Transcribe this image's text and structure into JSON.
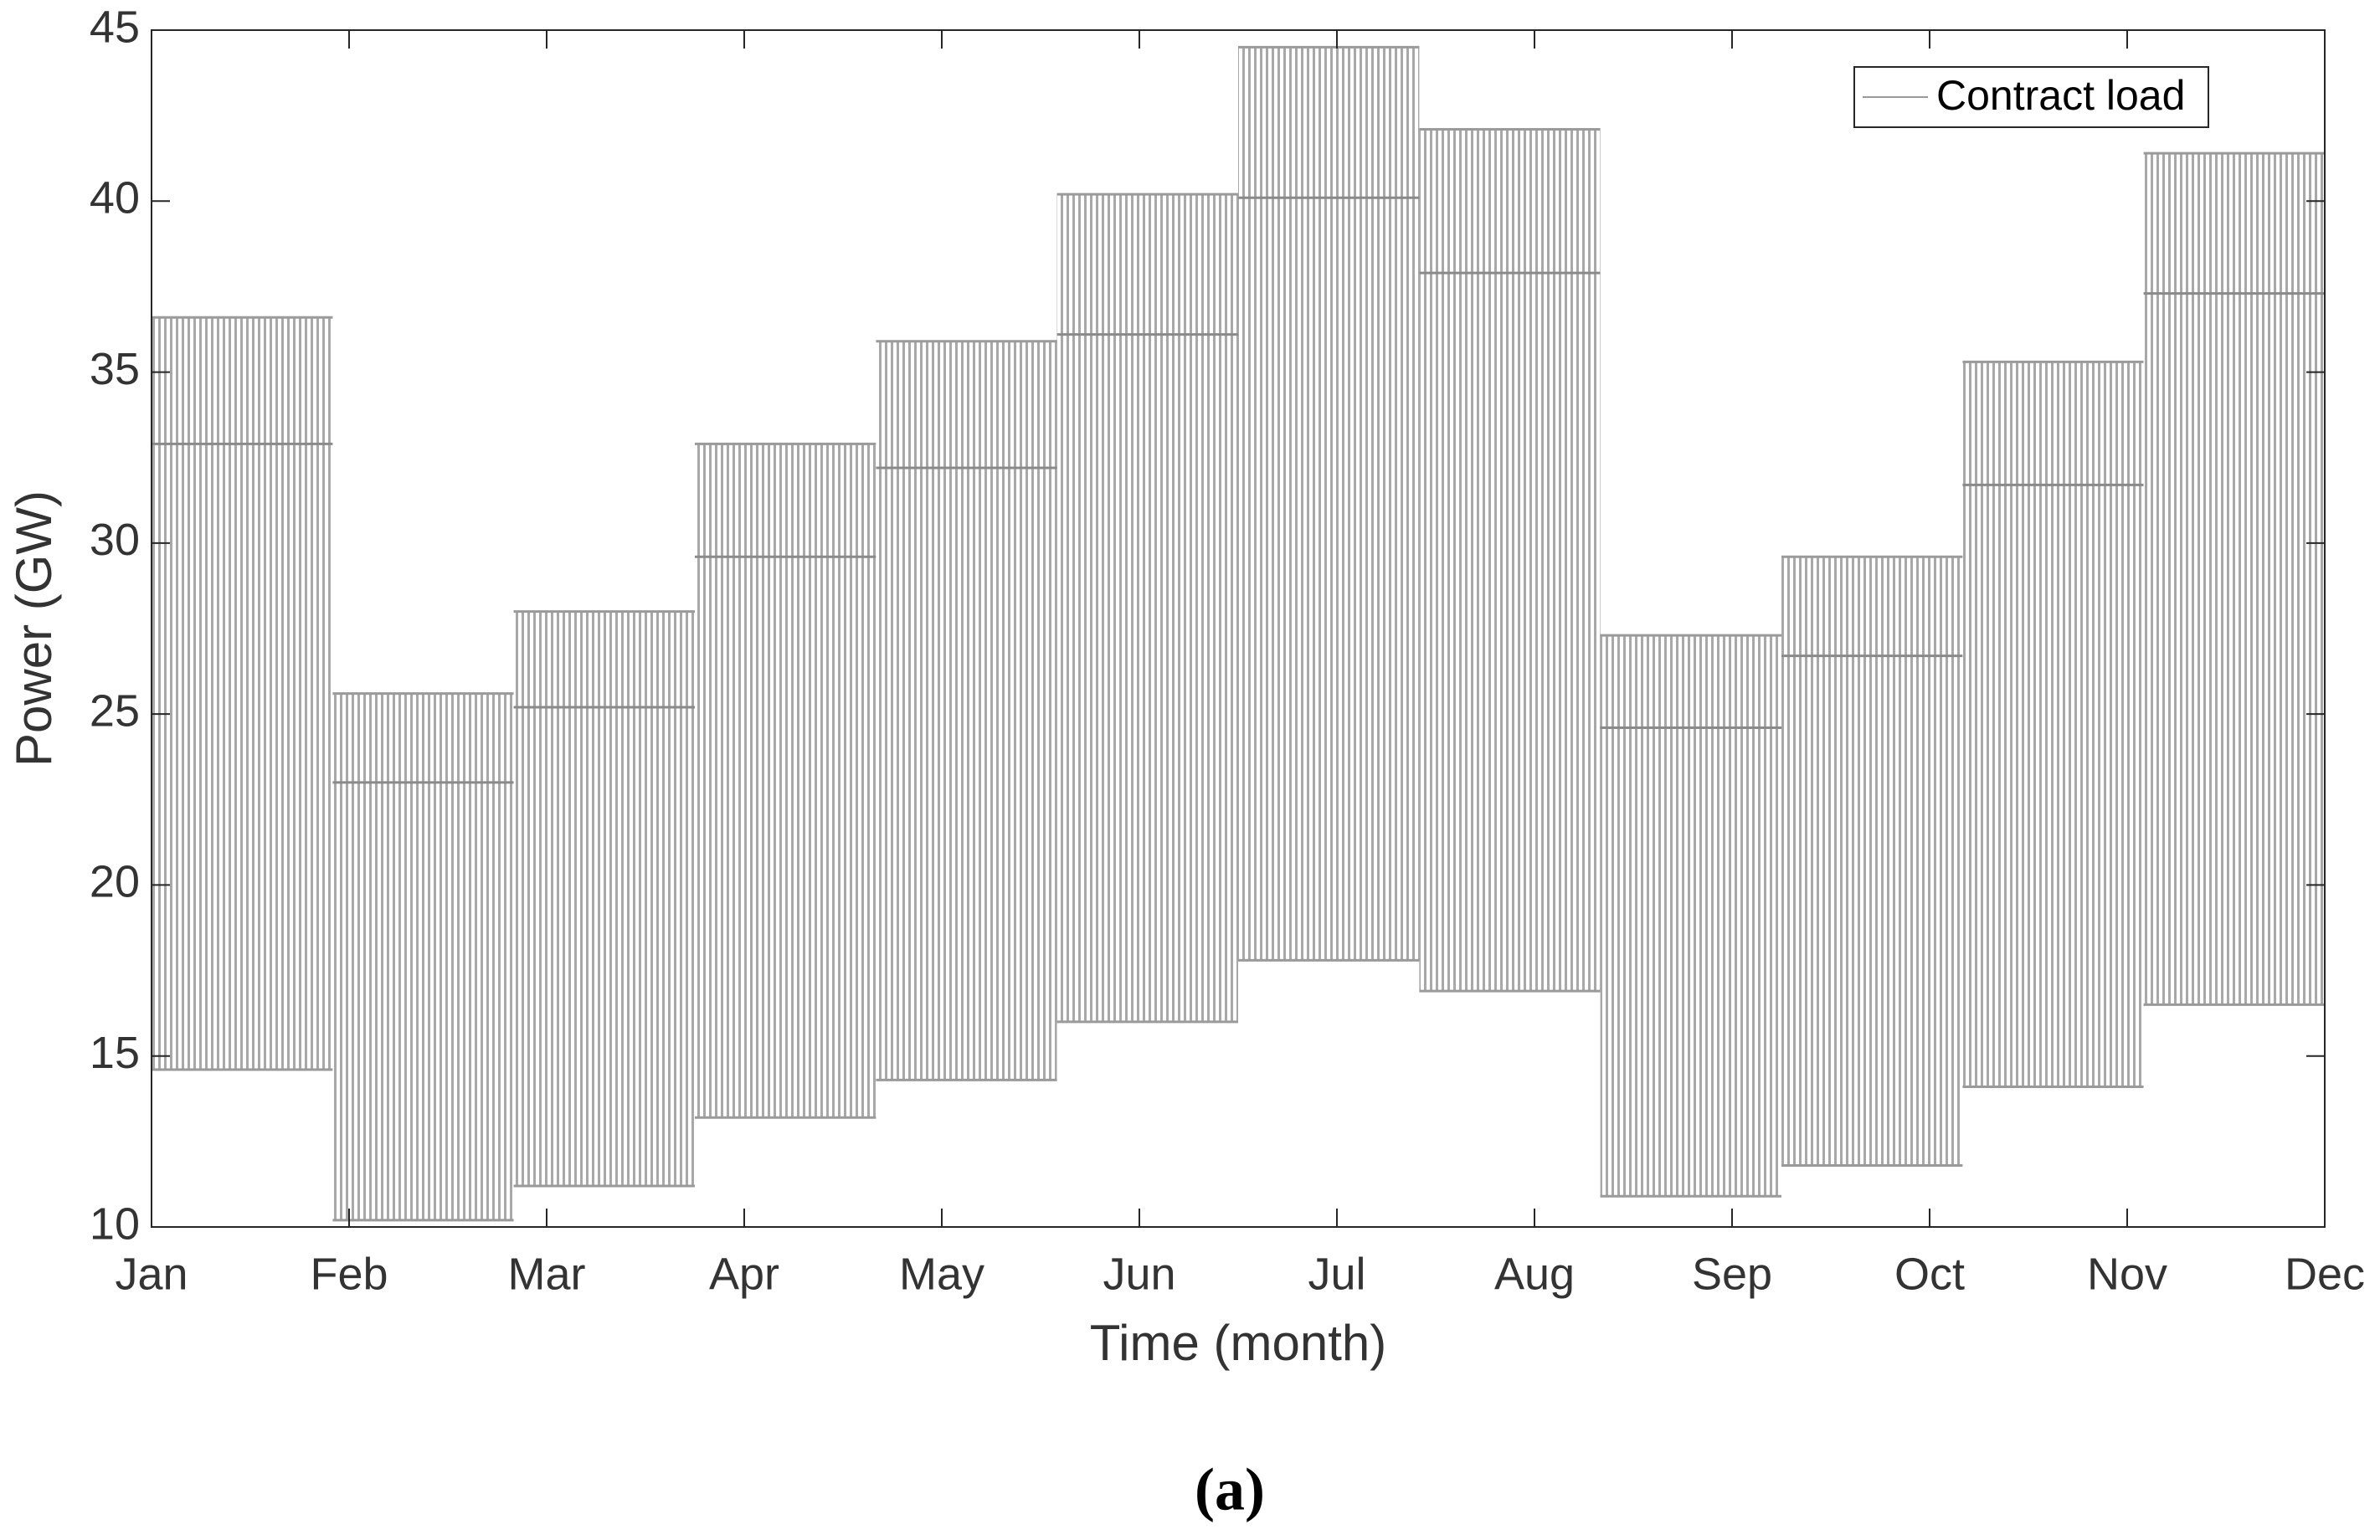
{
  "chart_data": {
    "type": "band-blocks",
    "xlabel": "Time (month)",
    "ylabel": "Power (GW)",
    "caption": "(a)",
    "legend_location": "upper right",
    "grid": false,
    "series": [
      {
        "name": "Contract load",
        "color": "#9a9a9a",
        "blocks": [
          {
            "start": 0,
            "end": 0.917,
            "low": 14.6,
            "mid": 32.9,
            "high": 36.6
          },
          {
            "start": 0.917,
            "end": 1.833,
            "low": 10.2,
            "mid": 23.0,
            "high": 25.6
          },
          {
            "start": 1.833,
            "end": 2.75,
            "low": 11.2,
            "mid": 25.2,
            "high": 28.0
          },
          {
            "start": 2.75,
            "end": 3.667,
            "low": 13.2,
            "mid": 29.6,
            "high": 32.9
          },
          {
            "start": 3.667,
            "end": 4.583,
            "low": 14.3,
            "mid": 32.2,
            "high": 35.9
          },
          {
            "start": 4.583,
            "end": 5.5,
            "low": 16.0,
            "mid": 36.1,
            "high": 40.2
          },
          {
            "start": 5.5,
            "end": 6.417,
            "low": 17.8,
            "mid": 40.1,
            "high": 44.5
          },
          {
            "start": 6.417,
            "end": 7.333,
            "low": 16.9,
            "mid": 37.9,
            "high": 42.1
          },
          {
            "start": 7.333,
            "end": 8.25,
            "low": 10.9,
            "mid": 24.6,
            "high": 27.3
          },
          {
            "start": 8.25,
            "end": 9.167,
            "low": 11.8,
            "mid": 26.7,
            "high": 29.6
          },
          {
            "start": 9.167,
            "end": 10.083,
            "low": 14.1,
            "mid": 31.7,
            "high": 35.3
          },
          {
            "start": 10.083,
            "end": 11,
            "low": 16.5,
            "mid": 37.3,
            "high": 41.4
          }
        ]
      }
    ],
    "xlim": [
      0,
      11
    ],
    "xticks": [
      {
        "value": 0,
        "label": "Jan"
      },
      {
        "value": 1,
        "label": "Feb"
      },
      {
        "value": 2,
        "label": "Mar"
      },
      {
        "value": 3,
        "label": "Apr"
      },
      {
        "value": 4,
        "label": "May"
      },
      {
        "value": 5,
        "label": "Jun"
      },
      {
        "value": 6,
        "label": "Jul"
      },
      {
        "value": 7,
        "label": "Aug"
      },
      {
        "value": 8,
        "label": "Sep"
      },
      {
        "value": 9,
        "label": "Oct"
      },
      {
        "value": 10,
        "label": "Nov"
      },
      {
        "value": 11,
        "label": "Dec"
      }
    ],
    "ylim": [
      10,
      45
    ],
    "yticks": [
      10,
      15,
      20,
      25,
      30,
      35,
      40,
      45
    ]
  }
}
